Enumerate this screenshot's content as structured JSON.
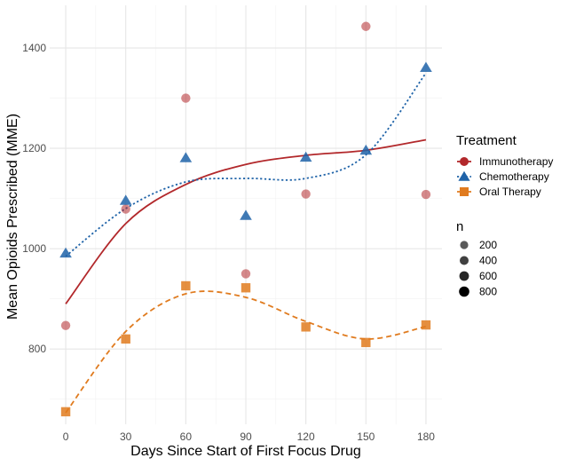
{
  "chart_data": {
    "type": "scatter",
    "xlabel": "Days Since Start of First Focus Drug",
    "ylabel": "Mean Opioids Prescribed (MME)",
    "x_ticks": [
      0,
      30,
      60,
      90,
      120,
      150,
      180
    ],
    "y_ticks": [
      800,
      1000,
      1200,
      1400
    ],
    "xlim": [
      -8,
      188
    ],
    "ylim": [
      650,
      1485
    ],
    "grid": true,
    "legend_position": "right",
    "legend_title": "Treatment",
    "series": [
      {
        "name": "Immunotherapy",
        "color": "#b2282b",
        "marker": "circle",
        "line": "solid",
        "x": [
          0,
          30,
          60,
          90,
          120,
          150,
          180
        ],
        "y": [
          847,
          1079,
          1300,
          950,
          1109,
          1443,
          1108
        ],
        "fit": [
          890,
          1050,
          1128,
          1168,
          1186,
          1196,
          1217
        ]
      },
      {
        "name": "Chemotherapy",
        "color": "#1f63a8",
        "marker": "triangle",
        "line": "dotted",
        "x": [
          0,
          30,
          60,
          90,
          120,
          150,
          180
        ],
        "y": [
          991,
          1096,
          1181,
          1066,
          1182,
          1196,
          1361
        ],
        "fit": [
          985,
          1080,
          1133,
          1140,
          1140,
          1187,
          1350
        ]
      },
      {
        "name": "Oral Therapy",
        "color": "#e07b1f",
        "marker": "square",
        "line": "dashed",
        "x": [
          0,
          30,
          60,
          90,
          120,
          150,
          180
        ],
        "y": [
          675,
          820,
          926,
          922,
          844,
          813,
          848
        ],
        "fit": [
          673,
          835,
          910,
          903,
          855,
          820,
          845
        ]
      }
    ],
    "size_legend": {
      "title": "n",
      "values": [
        "200",
        "400",
        "600",
        "800"
      ]
    }
  }
}
